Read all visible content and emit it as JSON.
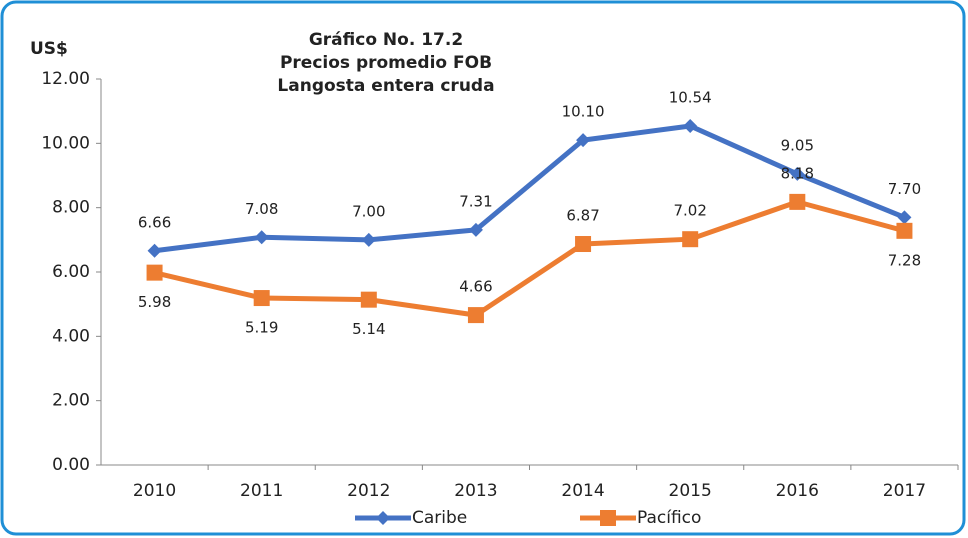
{
  "chart_data": {
    "type": "line",
    "title": [
      "Gráfico No. 17.2",
      "Precios promedio FOB",
      "Langosta entera cruda"
    ],
    "y_label": "US$",
    "categories": [
      "2010",
      "2011",
      "2012",
      "2013",
      "2014",
      "2015",
      "2016",
      "2017"
    ],
    "series": [
      {
        "name": "Caribe",
        "color": "#4472c4",
        "marker": "diamond",
        "values": [
          6.66,
          7.08,
          7.0,
          7.31,
          10.1,
          10.54,
          9.05,
          7.7
        ],
        "value_labels": [
          "6.66",
          "7.08",
          "7.00",
          "7.31",
          "10.10",
          "10.54",
          "9.05",
          "7.70"
        ]
      },
      {
        "name": "Pacífico",
        "color": "#ed7d31",
        "marker": "square",
        "values": [
          5.98,
          5.19,
          5.14,
          4.66,
          6.87,
          7.02,
          8.18,
          7.28
        ],
        "value_labels": [
          "5.98",
          "5.19",
          "5.14",
          "4.66",
          "6.87",
          "7.02",
          "8.18",
          "7.28"
        ]
      }
    ],
    "ylim": [
      0,
      12
    ],
    "yticks": [
      {
        "value": 0,
        "label": "0.00"
      },
      {
        "value": 2,
        "label": "2.00"
      },
      {
        "value": 4,
        "label": "4.00"
      },
      {
        "value": 6,
        "label": "6.00"
      },
      {
        "value": 8,
        "label": "8.00"
      },
      {
        "value": 10,
        "label": "10.00"
      },
      {
        "value": 12,
        "label": "12.00"
      }
    ],
    "grid": false,
    "legend": "bottom"
  }
}
